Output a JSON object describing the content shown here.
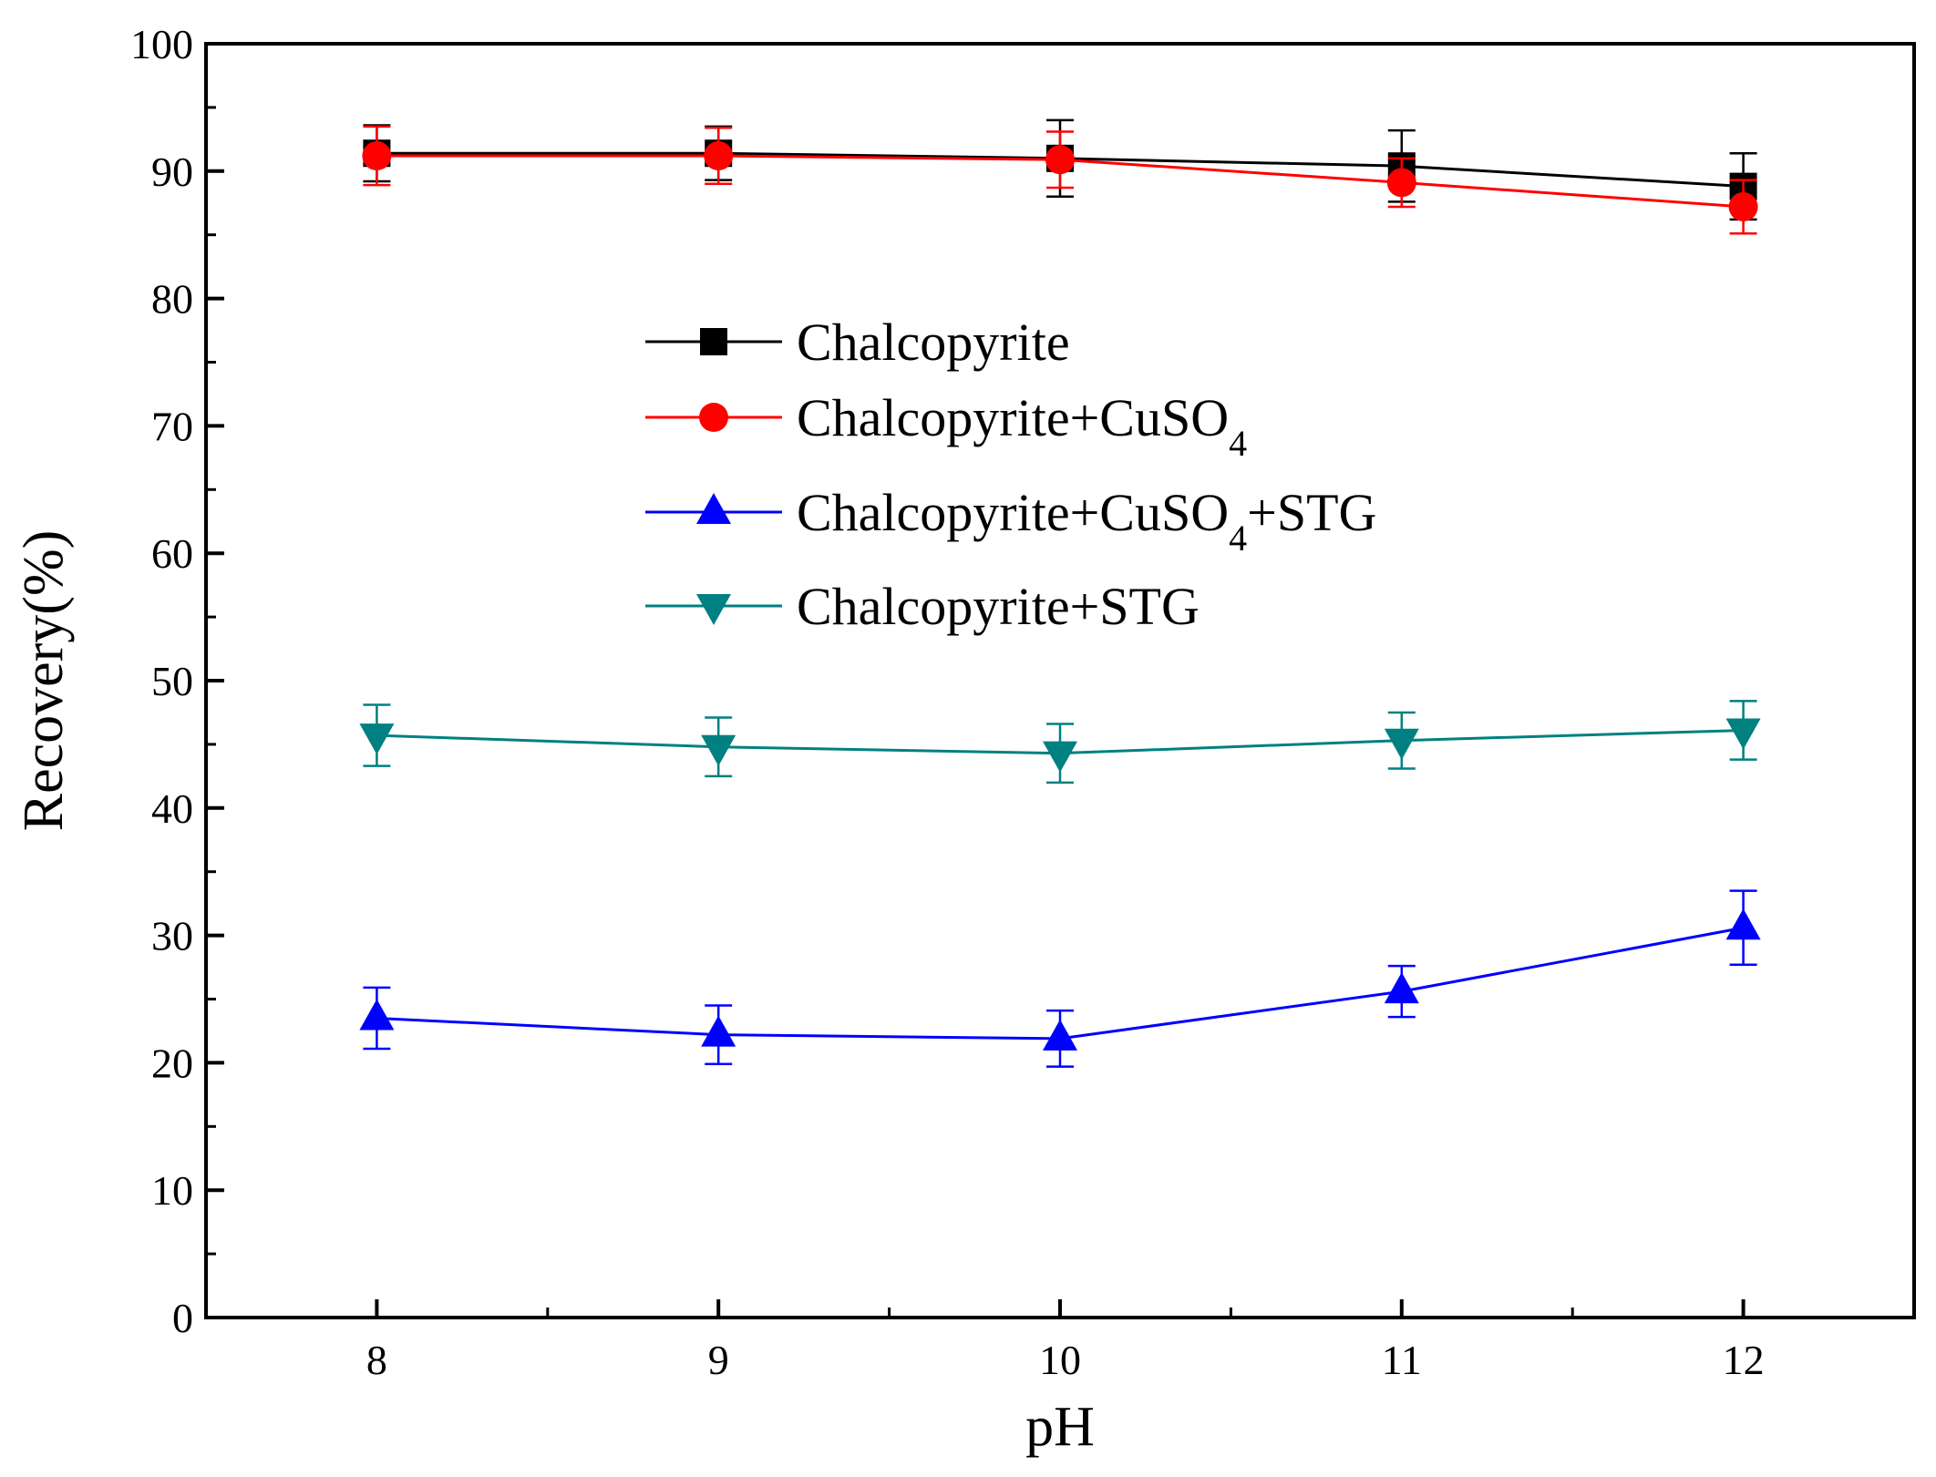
{
  "chart_data": {
    "type": "line",
    "title": "",
    "xlabel": "pH",
    "ylabel": "Recovery(%)",
    "x": [
      8,
      9,
      10,
      11,
      12
    ],
    "xlim": [
      7.5,
      12.5
    ],
    "ylim": [
      0,
      100
    ],
    "x_ticks": [
      "8",
      "9",
      "10",
      "11",
      "12"
    ],
    "y_ticks": [
      "0",
      "10",
      "20",
      "30",
      "40",
      "50",
      "60",
      "70",
      "80",
      "90",
      "100"
    ],
    "grid": false,
    "legend_position": "center",
    "series": [
      {
        "name": "Chalcopyrite",
        "legend": {
          "main": "Chalcopyrite",
          "sub": "",
          "tail": ""
        },
        "color": "#000000",
        "marker": "square",
        "values": [
          91.4,
          91.4,
          91.0,
          90.4,
          88.8
        ],
        "errors": [
          2.2,
          2.1,
          3.0,
          2.8,
          2.6
        ]
      },
      {
        "name": "Chalcopyrite+CuSO4",
        "legend": {
          "main": "Chalcopyrite+CuSO",
          "sub": "4",
          "tail": ""
        },
        "color": "#ff0000",
        "marker": "circle",
        "values": [
          91.2,
          91.2,
          90.9,
          89.1,
          87.2
        ],
        "errors": [
          2.3,
          2.2,
          2.2,
          1.9,
          2.1
        ]
      },
      {
        "name": "Chalcopyrite+CuSO4+STG",
        "legend": {
          "main": "Chalcopyrite+CuSO",
          "sub": "4",
          "tail": "+STG"
        },
        "color": "#0000ff",
        "marker": "triangle-up",
        "values": [
          23.5,
          22.2,
          21.9,
          25.6,
          30.6
        ],
        "errors": [
          2.4,
          2.3,
          2.2,
          2.0,
          2.9
        ]
      },
      {
        "name": "Chalcopyrite+STG",
        "legend": {
          "main": "Chalcopyrite+STG",
          "sub": "",
          "tail": ""
        },
        "color": "#008080",
        "marker": "triangle-down",
        "values": [
          45.7,
          44.8,
          44.3,
          45.3,
          46.1
        ],
        "errors": [
          2.4,
          2.3,
          2.3,
          2.2,
          2.3
        ]
      }
    ]
  }
}
